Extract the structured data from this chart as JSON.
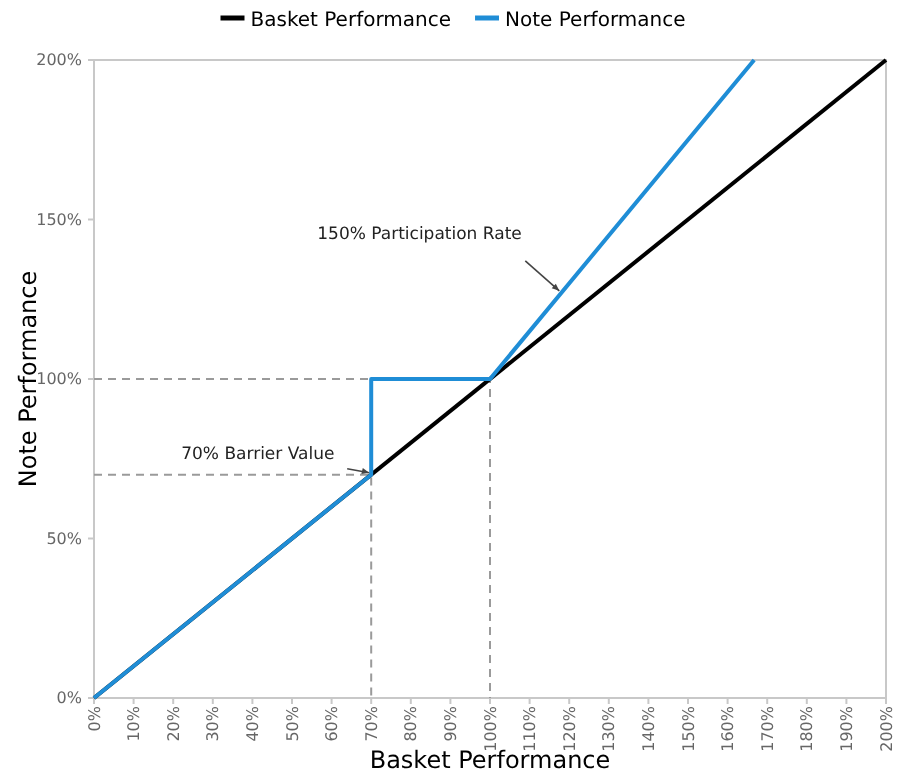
{
  "chart_data": {
    "type": "line",
    "xlabel": "Basket Performance",
    "ylabel": "Note Performance",
    "xlim": [
      0,
      200
    ],
    "ylim": [
      0,
      200
    ],
    "xticks": [
      {
        "value": 0,
        "label": "0%"
      },
      {
        "value": 10,
        "label": "10%"
      },
      {
        "value": 20,
        "label": "20%"
      },
      {
        "value": 30,
        "label": "30%"
      },
      {
        "value": 40,
        "label": "40%"
      },
      {
        "value": 50,
        "label": "50%"
      },
      {
        "value": 60,
        "label": "60%"
      },
      {
        "value": 70,
        "label": "70%"
      },
      {
        "value": 80,
        "label": "80%"
      },
      {
        "value": 90,
        "label": "90%"
      },
      {
        "value": 100,
        "label": "100%"
      },
      {
        "value": 110,
        "label": "110%"
      },
      {
        "value": 120,
        "label": "120%"
      },
      {
        "value": 130,
        "label": "130%"
      },
      {
        "value": 140,
        "label": "140%"
      },
      {
        "value": 150,
        "label": "150%"
      },
      {
        "value": 160,
        "label": "160%"
      },
      {
        "value": 170,
        "label": "170%"
      },
      {
        "value": 180,
        "label": "180%"
      },
      {
        "value": 190,
        "label": "190%"
      },
      {
        "value": 200,
        "label": "200%"
      }
    ],
    "yticks": [
      {
        "value": 0,
        "label": "0%"
      },
      {
        "value": 50,
        "label": "50%"
      },
      {
        "value": 100,
        "label": "100%"
      },
      {
        "value": 150,
        "label": "150%"
      },
      {
        "value": 200,
        "label": "200%"
      }
    ],
    "grid": false,
    "legend": "top",
    "marker": "none",
    "series": [
      {
        "color": "#9a9a9a",
        "line_style": "dashed",
        "x": [
          0,
          70,
          70
        ],
        "values": [
          70,
          70,
          0
        ]
      },
      {
        "color": "#9a9a9a",
        "line_style": "dashed",
        "x": [
          0,
          100,
          100
        ],
        "values": [
          100,
          100,
          0
        ]
      },
      {
        "name": "Basket Performance",
        "color": "#000000",
        "line_style": "solid",
        "x": [
          0,
          200
        ],
        "values": [
          0,
          200
        ]
      },
      {
        "name": "Note Performance",
        "color": "#1f8dd6",
        "line_style": "solid",
        "x": [
          0,
          70,
          70,
          100,
          166.7
        ],
        "values": [
          0,
          70,
          100,
          100,
          200
        ]
      }
    ],
    "annotations": [
      {
        "text": "70% Barrier Value",
        "x": 70,
        "y": 70
      },
      {
        "text": "150% Participation Rate",
        "x": 118,
        "y": 127
      }
    ]
  }
}
